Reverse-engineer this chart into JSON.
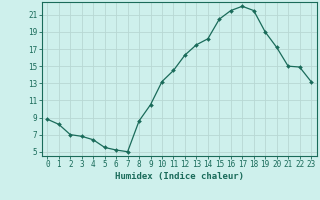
{
  "x": [
    0,
    1,
    2,
    3,
    4,
    5,
    6,
    7,
    8,
    9,
    10,
    11,
    12,
    13,
    14,
    15,
    16,
    17,
    18,
    19,
    20,
    21,
    22,
    23
  ],
  "y": [
    8.8,
    8.2,
    7.0,
    6.8,
    6.4,
    5.5,
    5.2,
    5.0,
    8.6,
    10.5,
    13.2,
    14.5,
    16.3,
    17.5,
    18.2,
    20.5,
    21.5,
    22.0,
    21.5,
    19.0,
    17.2,
    15.0,
    14.9,
    13.2
  ],
  "line_color": "#1a6b5a",
  "marker": "D",
  "marker_size": 2,
  "bg_color": "#cef0ec",
  "grid_color": "#b8d8d4",
  "xlabel": "Humidex (Indice chaleur)",
  "xlim": [
    -0.5,
    23.5
  ],
  "ylim": [
    4.5,
    22.5
  ],
  "xticks": [
    0,
    1,
    2,
    3,
    4,
    5,
    6,
    7,
    8,
    9,
    10,
    11,
    12,
    13,
    14,
    15,
    16,
    17,
    18,
    19,
    20,
    21,
    22,
    23
  ],
  "yticks": [
    5,
    7,
    9,
    11,
    13,
    15,
    17,
    19,
    21
  ],
  "xlabel_fontsize": 6.5,
  "tick_fontsize": 5.5
}
